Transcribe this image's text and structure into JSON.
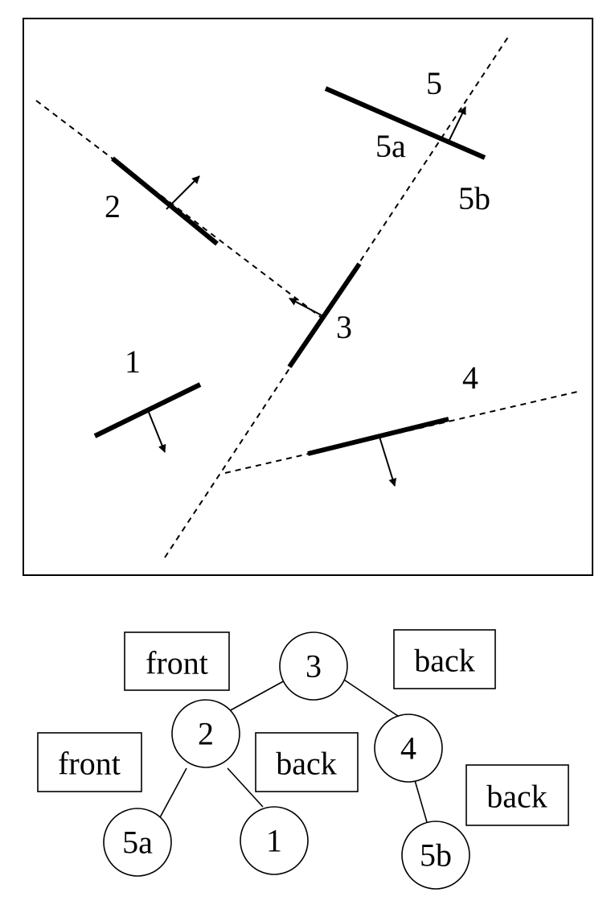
{
  "scene": {
    "labels": {
      "s1": "1",
      "s2": "2",
      "s3": "3",
      "s4": "4",
      "s5": "5",
      "s5a": "5a",
      "s5b": "5b"
    }
  },
  "tree": {
    "nodes": {
      "n3": "3",
      "n2": "2",
      "n4": "4",
      "n5a": "5a",
      "n1": "1",
      "n5b": "5b"
    },
    "boxes": {
      "front_top": "front",
      "back_top": "back",
      "front_left": "front",
      "back_mid": "back",
      "back_right": "back"
    }
  }
}
